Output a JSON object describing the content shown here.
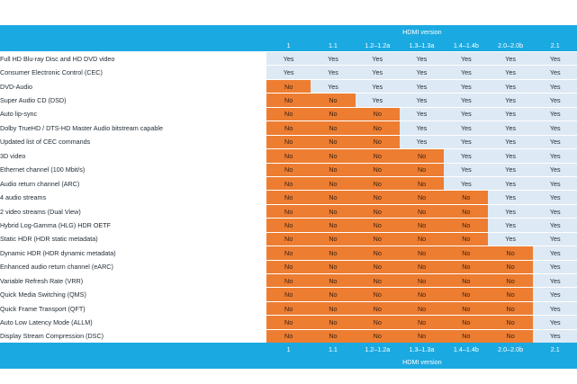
{
  "header": {
    "title": "HDMI version"
  },
  "footer": {
    "title": "HDMI version"
  },
  "versions": [
    "1",
    "1.1",
    "1.2–1.2a",
    "1.3–1.3a",
    "1.4–1.4b",
    "2.0–2.0b",
    "2.1"
  ],
  "colors": {
    "band": "#1ba9e1",
    "yes": "#dde9f4",
    "no": "#ed7d31"
  },
  "rows": [
    {
      "feature": "Full HD Blu-ray Disc and HD DVD video",
      "values": [
        "Yes",
        "Yes",
        "Yes",
        "Yes",
        "Yes",
        "Yes",
        "Yes"
      ]
    },
    {
      "feature": "Consumer Electronic Control (CEC)",
      "values": [
        "Yes",
        "Yes",
        "Yes",
        "Yes",
        "Yes",
        "Yes",
        "Yes"
      ]
    },
    {
      "feature": "DVD-Audio",
      "values": [
        "No",
        "Yes",
        "Yes",
        "Yes",
        "Yes",
        "Yes",
        "Yes"
      ]
    },
    {
      "feature": "Super Audio CD (DSD)",
      "values": [
        "No",
        "No",
        "Yes",
        "Yes",
        "Yes",
        "Yes",
        "Yes"
      ]
    },
    {
      "feature": "Auto lip-sync",
      "values": [
        "No",
        "No",
        "No",
        "Yes",
        "Yes",
        "Yes",
        "Yes"
      ]
    },
    {
      "feature": "Dolby TrueHD / DTS-HD Master Audio bitstream capable",
      "values": [
        "No",
        "No",
        "No",
        "Yes",
        "Yes",
        "Yes",
        "Yes"
      ]
    },
    {
      "feature": "Updated list of CEC commands",
      "values": [
        "No",
        "No",
        "No",
        "Yes",
        "Yes",
        "Yes",
        "Yes"
      ]
    },
    {
      "feature": "3D video",
      "values": [
        "No",
        "No",
        "No",
        "No",
        "Yes",
        "Yes",
        "Yes"
      ]
    },
    {
      "feature": "Ethernet channel (100 Mbit/s)",
      "values": [
        "No",
        "No",
        "No",
        "No",
        "Yes",
        "Yes",
        "Yes"
      ]
    },
    {
      "feature": "Audio return channel (ARC)",
      "values": [
        "No",
        "No",
        "No",
        "No",
        "Yes",
        "Yes",
        "Yes"
      ]
    },
    {
      "feature": "4 audio streams",
      "values": [
        "No",
        "No",
        "No",
        "No",
        "No",
        "Yes",
        "Yes"
      ]
    },
    {
      "feature": "2 video streams (Dual View)",
      "values": [
        "No",
        "No",
        "No",
        "No",
        "No",
        "Yes",
        "Yes"
      ]
    },
    {
      "feature": "Hybrid Log-Gamma (HLG) HDR OETF",
      "values": [
        "No",
        "No",
        "No",
        "No",
        "No",
        "Yes",
        "Yes"
      ]
    },
    {
      "feature": "Static HDR (HDR static metadata)",
      "values": [
        "No",
        "No",
        "No",
        "No",
        "No",
        "Yes",
        "Yes"
      ]
    },
    {
      "feature": "Dynamic HDR (HDR dynamic metadata)",
      "values": [
        "No",
        "No",
        "No",
        "No",
        "No",
        "No",
        "Yes"
      ]
    },
    {
      "feature": "Enhanced audio return channel (eARC)",
      "values": [
        "No",
        "No",
        "No",
        "No",
        "No",
        "No",
        "Yes"
      ]
    },
    {
      "feature": "Variable Refresh Rate (VRR)",
      "values": [
        "No",
        "No",
        "No",
        "No",
        "No",
        "No",
        "Yes"
      ]
    },
    {
      "feature": "Quick Media Switching (QMS)",
      "values": [
        "No",
        "No",
        "No",
        "No",
        "No",
        "No",
        "Yes"
      ]
    },
    {
      "feature": "Quick Frame Transport (QFT)",
      "values": [
        "No",
        "No",
        "No",
        "No",
        "No",
        "No",
        "Yes"
      ]
    },
    {
      "feature": "Auto Low Latency Mode (ALLM)",
      "values": [
        "No",
        "No",
        "No",
        "No",
        "No",
        "No",
        "Yes"
      ]
    },
    {
      "feature": "Display Stream Compression (DSC)",
      "values": [
        "No",
        "No",
        "No",
        "No",
        "No",
        "No",
        "Yes"
      ]
    }
  ]
}
